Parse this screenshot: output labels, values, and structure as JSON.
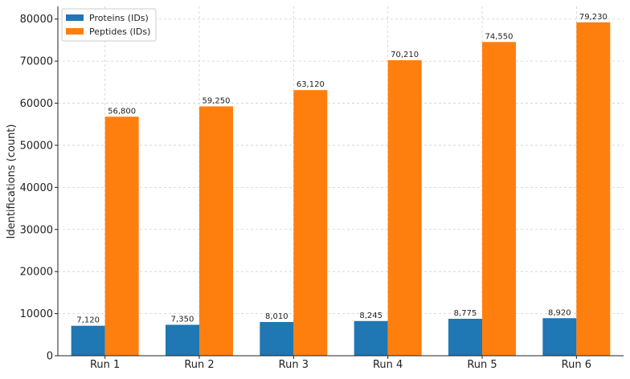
{
  "chart_data": {
    "type": "bar",
    "title": "",
    "xlabel": "",
    "ylabel": "Identifications (count)",
    "categories": [
      "Run 1",
      "Run 2",
      "Run 3",
      "Run 4",
      "Run 5",
      "Run 6"
    ],
    "series": [
      {
        "name": "Proteins (IDs)",
        "color": "#1f77b4",
        "values": [
          7120,
          7350,
          8010,
          8245,
          8775,
          8920
        ],
        "labels": [
          "7,120",
          "7,350",
          "8,010",
          "8,245",
          "8,775",
          "8,920"
        ]
      },
      {
        "name": "Peptides (IDs)",
        "color": "#ff7f0e",
        "values": [
          56800,
          59250,
          63120,
          70210,
          74550,
          79230
        ],
        "labels": [
          "56,800",
          "59,250",
          "63,120",
          "70,210",
          "74,550",
          "79,230"
        ]
      }
    ],
    "ylim": [
      0,
      83000
    ],
    "yticks": [
      0,
      10000,
      20000,
      30000,
      40000,
      50000,
      60000,
      70000,
      80000
    ],
    "ytick_labels": [
      "0",
      "10000",
      "20000",
      "30000",
      "40000",
      "50000",
      "60000",
      "70000",
      "80000"
    ],
    "grid": true,
    "legend_position": "top-left"
  }
}
